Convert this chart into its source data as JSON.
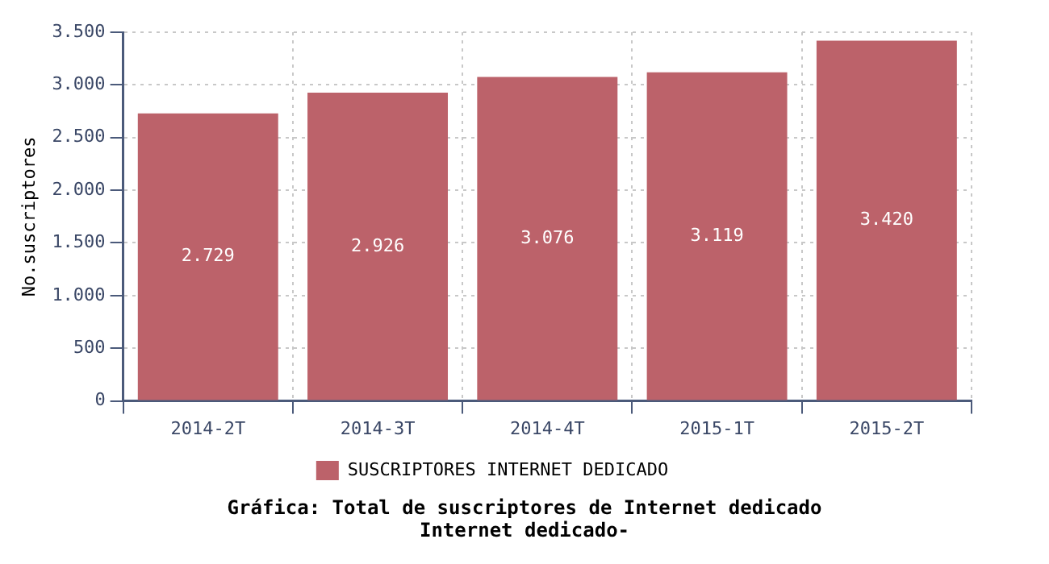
{
  "chart_data": {
    "type": "bar",
    "title": "Gráfica: Total de suscriptores de Internet dedicado",
    "subtitle": "Internet dedicado-",
    "ylabel": "No.suscriptores",
    "categories": [
      "2014-2T",
      "2014-3T",
      "2014-4T",
      "2015-1T",
      "2015-2T"
    ],
    "series": [
      {
        "name": "SUSCRIPTORES INTERNET DEDICADO",
        "color": "#bc626a",
        "values": [
          2729,
          2926,
          3076,
          3119,
          3420
        ],
        "value_labels": [
          "2.729",
          "2.926",
          "3.076",
          "3.119",
          "3.420"
        ]
      }
    ],
    "ylim": [
      0,
      3500
    ],
    "yticks": [
      0,
      {
        "value": 500,
        "label": "500"
      },
      {
        "value": 1000,
        "label": "1.000"
      },
      {
        "value": 1500,
        "label": "1.500"
      },
      {
        "value": 2000,
        "label": "2.000"
      },
      {
        "value": 2500,
        "label": "2.500"
      },
      {
        "value": 3000,
        "label": "3.000"
      },
      {
        "value": 3500,
        "label": "3.500"
      }
    ],
    "grid": true,
    "legend": "bottom"
  }
}
